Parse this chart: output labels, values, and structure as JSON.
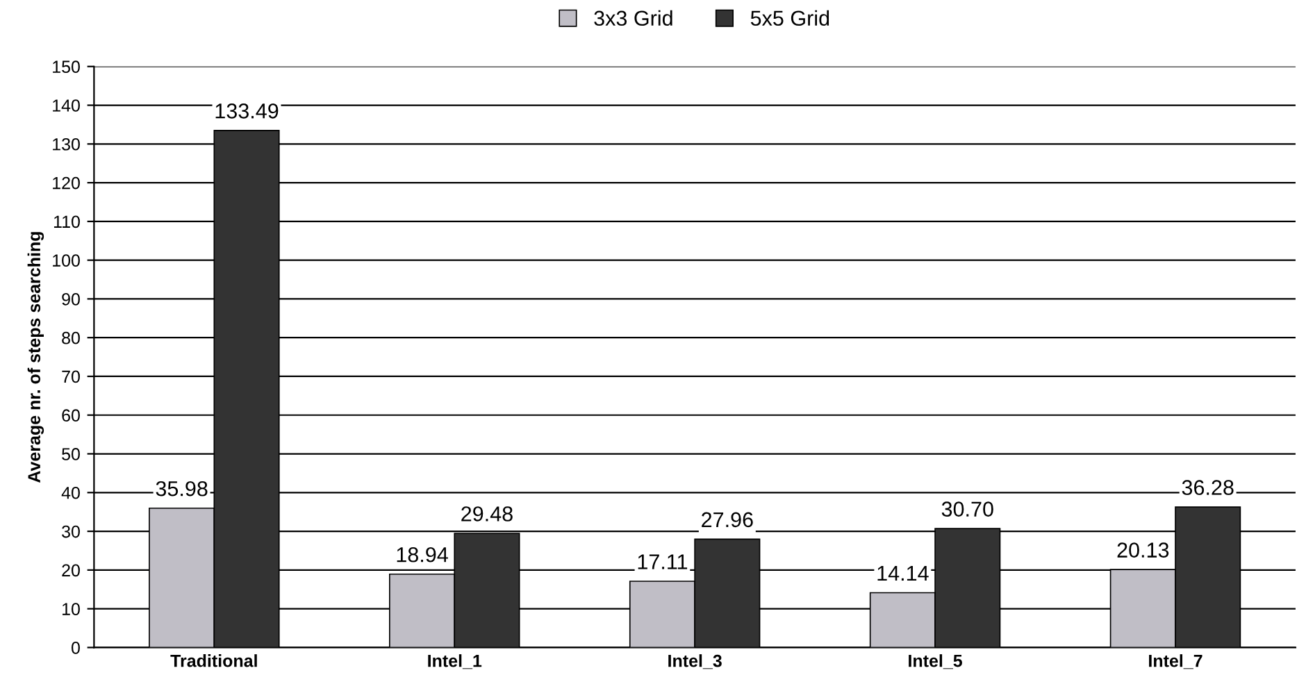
{
  "chart_data": {
    "type": "bar",
    "ylabel": "Average nr. of steps searching",
    "categories": [
      "Traditional",
      "Intel_1",
      "Intel_3",
      "Intel_5",
      "Intel_7"
    ],
    "series": [
      {
        "name": "3x3 Grid",
        "color": "#c0bec6",
        "values": [
          35.98,
          18.94,
          17.11,
          14.14,
          20.13
        ],
        "value_labels": [
          "35.98",
          "18.94",
          "17.11",
          "14.14",
          "20.13"
        ]
      },
      {
        "name": "5x5 Grid",
        "color": "#333333",
        "values": [
          133.49,
          29.48,
          27.96,
          30.7,
          36.28
        ],
        "value_labels": [
          "133.49",
          "29.48",
          "27.96",
          "30.70",
          "36.28"
        ]
      }
    ],
    "ylim": [
      0,
      150
    ],
    "yticks": [
      0,
      10,
      20,
      30,
      40,
      50,
      60,
      70,
      80,
      90,
      100,
      110,
      120,
      130,
      140,
      150
    ],
    "grid": "y",
    "legend": "top"
  }
}
